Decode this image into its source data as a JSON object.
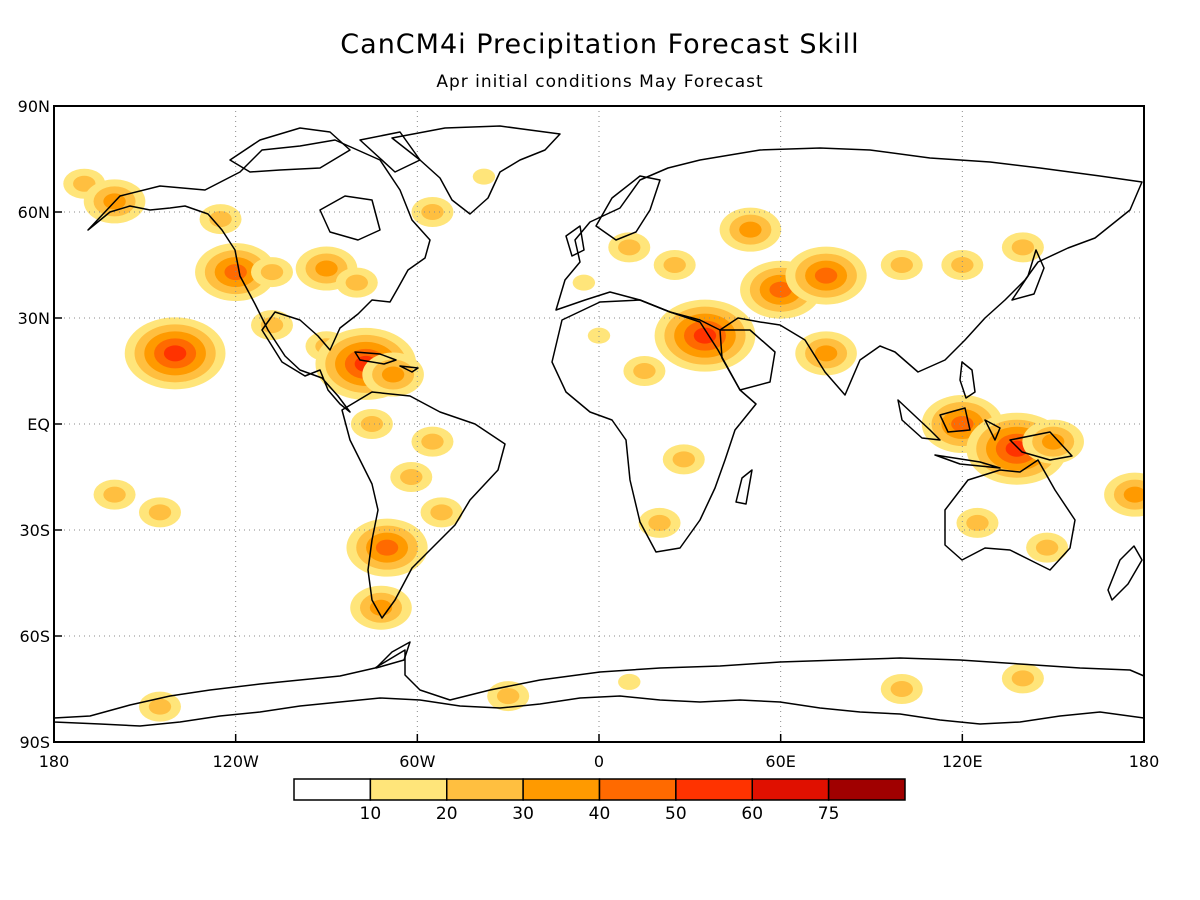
{
  "header": {
    "title": "CanCM4i Precipitation Forecast Skill",
    "subtitle": "Apr initial conditions   May Forecast"
  },
  "chart_data": {
    "type": "heatmap",
    "projection": "equirectangular",
    "xlim": [
      -180,
      180
    ],
    "ylim": [
      -90,
      90
    ],
    "grid": true,
    "x_ticks": [
      {
        "value": -180,
        "label": "180"
      },
      {
        "value": -120,
        "label": "120W"
      },
      {
        "value": -60,
        "label": "60W"
      },
      {
        "value": 0,
        "label": "0"
      },
      {
        "value": 60,
        "label": "60E"
      },
      {
        "value": 120,
        "label": "120E"
      },
      {
        "value": 180,
        "label": "180"
      }
    ],
    "y_ticks": [
      {
        "value": 90,
        "label": "90N"
      },
      {
        "value": 60,
        "label": "60N"
      },
      {
        "value": 30,
        "label": "30N"
      },
      {
        "value": 0,
        "label": "EQ"
      },
      {
        "value": -30,
        "label": "30S"
      },
      {
        "value": -60,
        "label": "60S"
      },
      {
        "value": -90,
        "label": "90S"
      }
    ],
    "colorbar": {
      "levels": [
        10,
        20,
        30,
        40,
        50,
        60,
        75
      ],
      "labels": [
        "10",
        "20",
        "30",
        "40",
        "50",
        "60",
        "75"
      ],
      "colors": [
        "#ffffff",
        "#ffe57a",
        "#ffbf40",
        "#ff9a00",
        "#ff6a00",
        "#ff3300",
        "#e01000",
        "#a00000"
      ]
    },
    "skill_regions": [
      {
        "lon": -170,
        "lat": 68,
        "level": 2
      },
      {
        "lon": -160,
        "lat": 63,
        "level": 3
      },
      {
        "lon": -125,
        "lat": 58,
        "level": 2
      },
      {
        "lon": -120,
        "lat": 43,
        "level": 4
      },
      {
        "lon": -108,
        "lat": 43,
        "level": 2
      },
      {
        "lon": -90,
        "lat": 44,
        "level": 3
      },
      {
        "lon": -80,
        "lat": 40,
        "level": 2
      },
      {
        "lon": -108,
        "lat": 28,
        "level": 2
      },
      {
        "lon": -90,
        "lat": 22,
        "level": 2
      },
      {
        "lon": -77,
        "lat": 17,
        "level": 5
      },
      {
        "lon": -68,
        "lat": 14,
        "level": 3
      },
      {
        "lon": -140,
        "lat": 20,
        "level": 5
      },
      {
        "lon": -55,
        "lat": 60,
        "level": 2
      },
      {
        "lon": -38,
        "lat": 70,
        "level": 1
      },
      {
        "lon": -75,
        "lat": 0,
        "level": 2
      },
      {
        "lon": -55,
        "lat": -5,
        "level": 2
      },
      {
        "lon": -62,
        "lat": -15,
        "level": 2
      },
      {
        "lon": -52,
        "lat": -25,
        "level": 2
      },
      {
        "lon": -70,
        "lat": -35,
        "level": 4
      },
      {
        "lon": -72,
        "lat": -52,
        "level": 3
      },
      {
        "lon": -160,
        "lat": -20,
        "level": 2
      },
      {
        "lon": -145,
        "lat": -25,
        "level": 2
      },
      {
        "lon": -5,
        "lat": 40,
        "level": 1
      },
      {
        "lon": 10,
        "lat": 50,
        "level": 2
      },
      {
        "lon": 25,
        "lat": 45,
        "level": 2
      },
      {
        "lon": 50,
        "lat": 55,
        "level": 3
      },
      {
        "lon": 60,
        "lat": 38,
        "level": 4
      },
      {
        "lon": 75,
        "lat": 42,
        "level": 4
      },
      {
        "lon": 35,
        "lat": 25,
        "level": 5
      },
      {
        "lon": 15,
        "lat": 15,
        "level": 2
      },
      {
        "lon": 0,
        "lat": 25,
        "level": 1
      },
      {
        "lon": 28,
        "lat": -10,
        "level": 2
      },
      {
        "lon": 20,
        "lat": -28,
        "level": 2
      },
      {
        "lon": 75,
        "lat": 20,
        "level": 3
      },
      {
        "lon": 100,
        "lat": 45,
        "level": 2
      },
      {
        "lon": 120,
        "lat": 45,
        "level": 2
      },
      {
        "lon": 140,
        "lat": 50,
        "level": 2
      },
      {
        "lon": 120,
        "lat": 0,
        "level": 4
      },
      {
        "lon": 138,
        "lat": -7,
        "level": 5
      },
      {
        "lon": 150,
        "lat": -5,
        "level": 3
      },
      {
        "lon": 125,
        "lat": -28,
        "level": 2
      },
      {
        "lon": 148,
        "lat": -35,
        "level": 2
      },
      {
        "lon": 177,
        "lat": -20,
        "level": 3
      },
      {
        "lon": -145,
        "lat": -80,
        "level": 2
      },
      {
        "lon": -30,
        "lat": -77,
        "level": 2
      },
      {
        "lon": 10,
        "lat": -73,
        "level": 1
      },
      {
        "lon": 100,
        "lat": -75,
        "level": 2
      },
      {
        "lon": 140,
        "lat": -72,
        "level": 2
      }
    ]
  }
}
